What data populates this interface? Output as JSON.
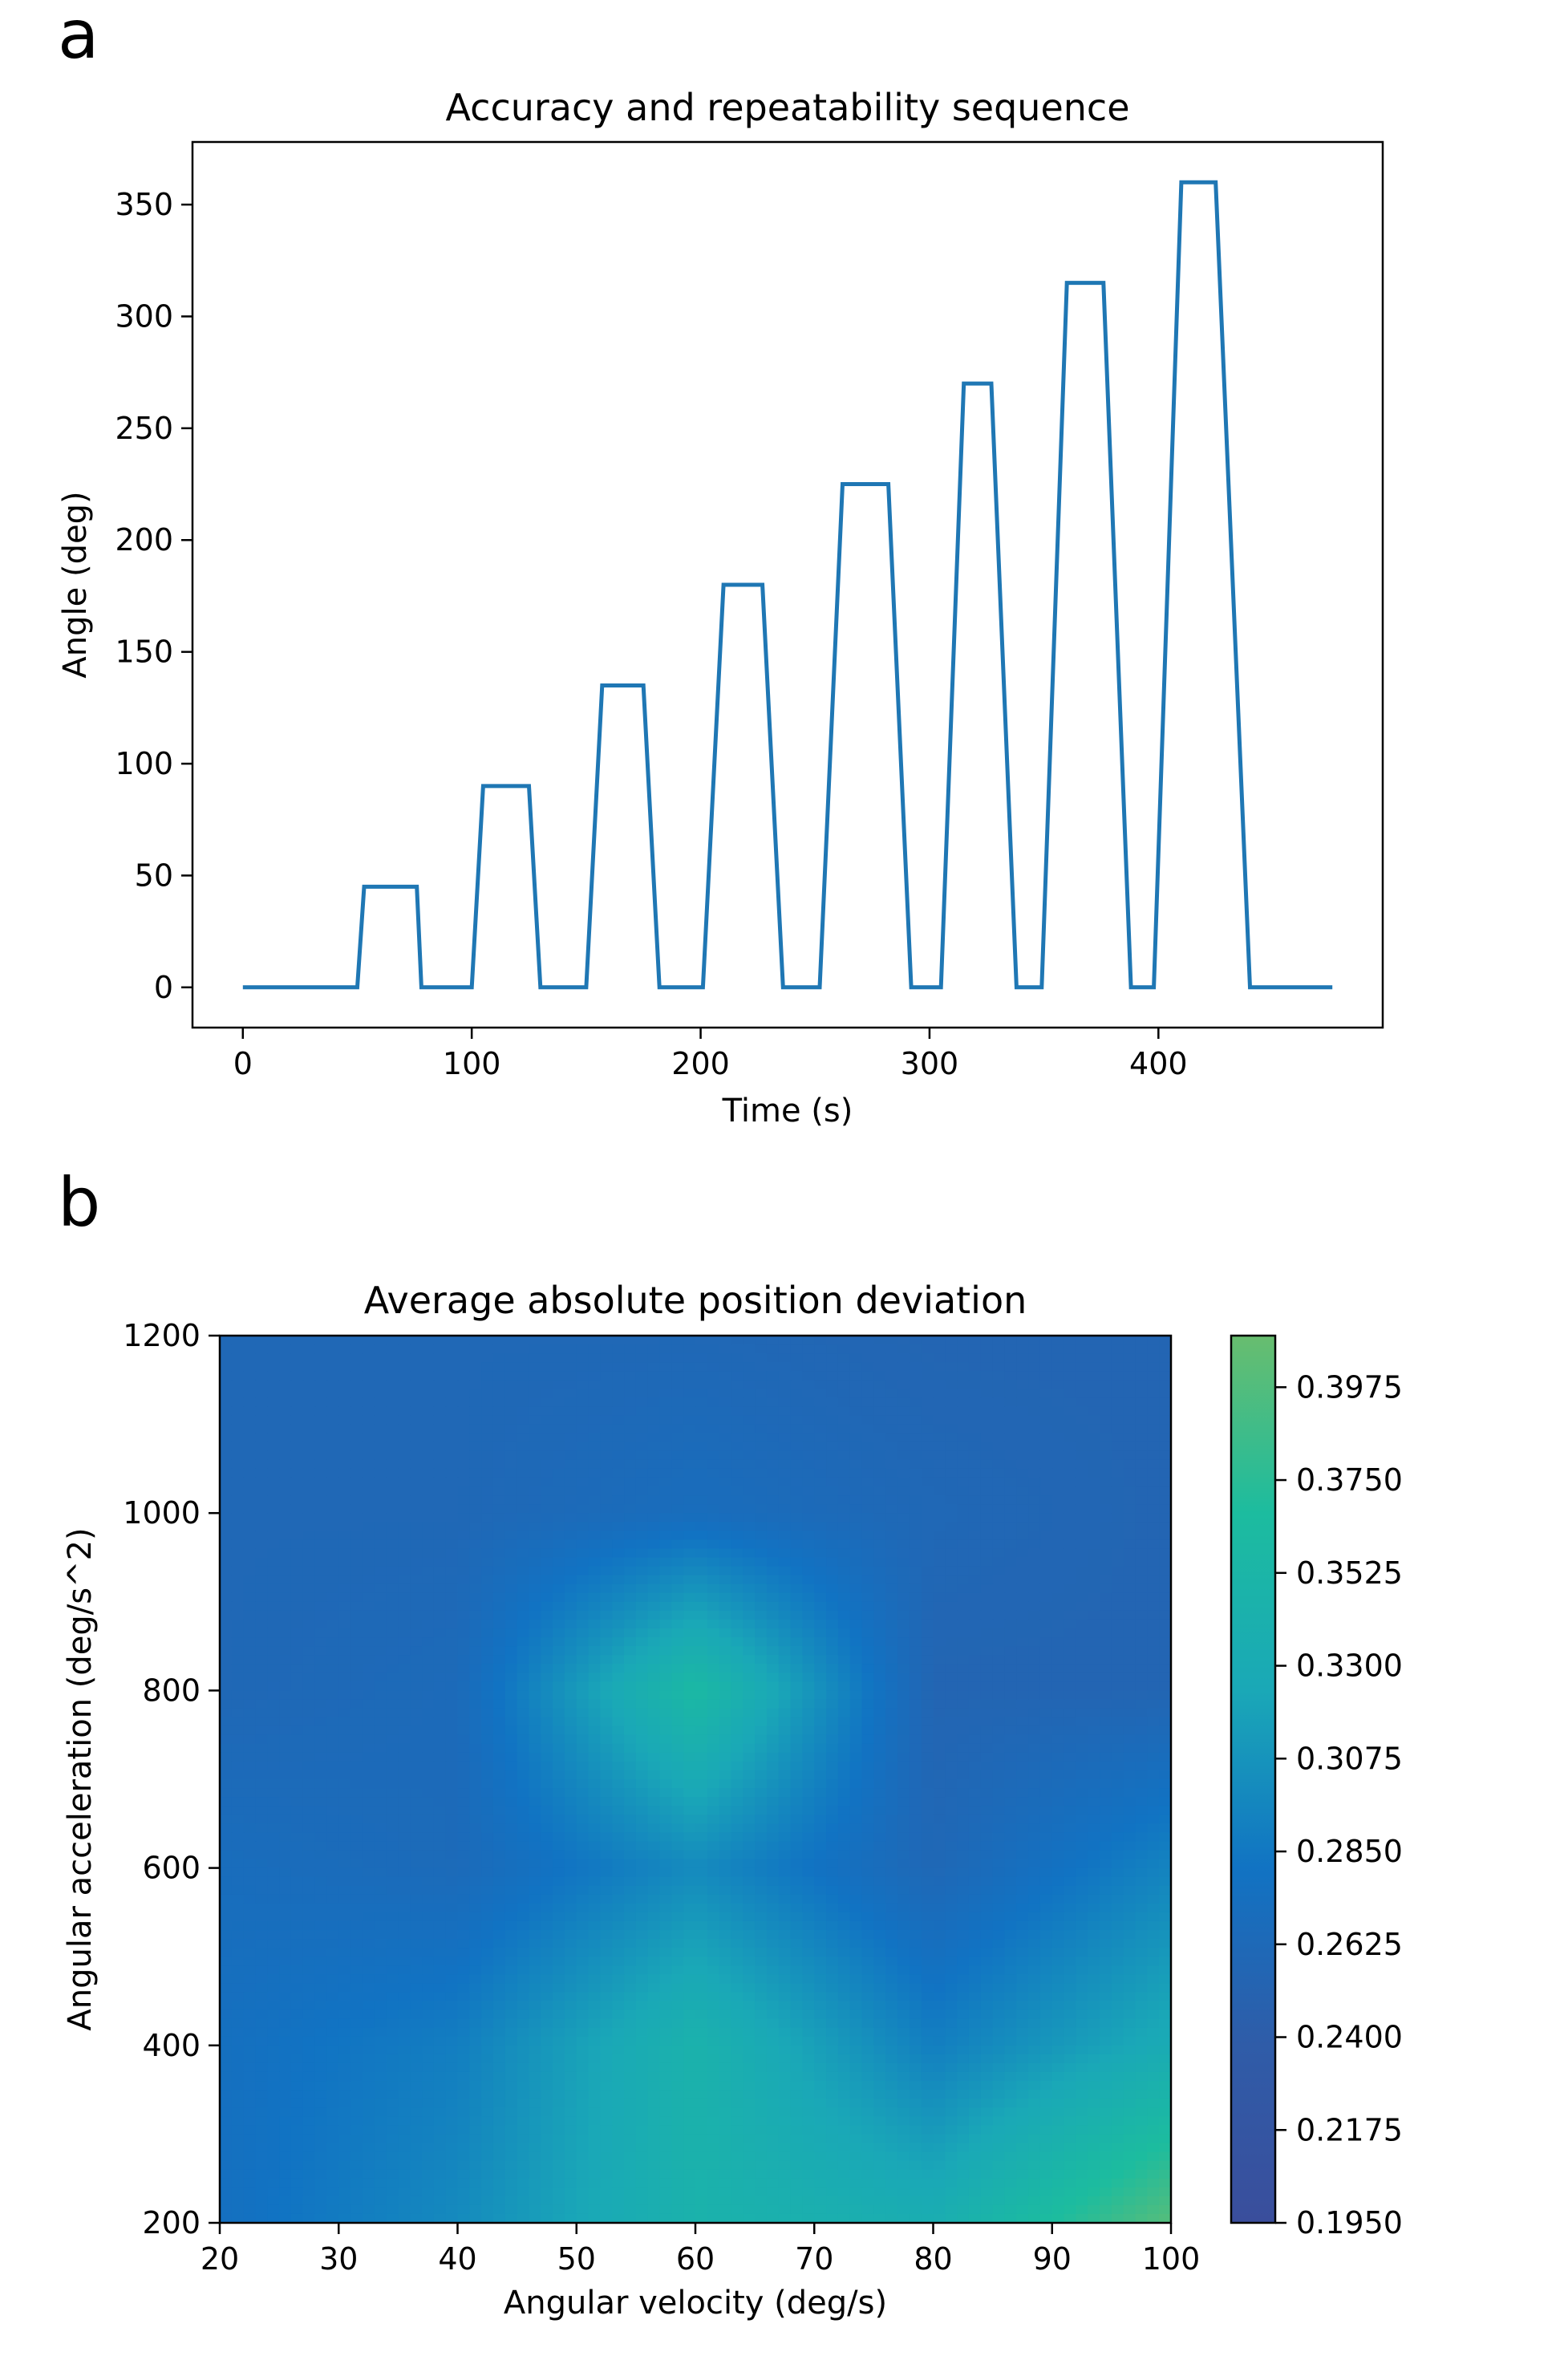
{
  "panel_labels": [
    "a",
    "b"
  ],
  "colors": {
    "line": "#1f77b4",
    "colormap": [
      "#3a4e9c",
      "#2f5ca8",
      "#1173c3",
      "#1aa8b7",
      "#1cbc9f",
      "#68bd6f"
    ]
  },
  "chart_data": [
    {
      "type": "line",
      "title": "Accuracy and repeatability sequence",
      "xlabel": "Time (s)",
      "ylabel": "Angle (deg)",
      "xlim": [
        -22,
        498
      ],
      "ylim": [
        -18,
        378
      ],
      "xticks": [
        0,
        100,
        200,
        300,
        400
      ],
      "yticks": [
        0,
        50,
        100,
        150,
        200,
        250,
        300,
        350
      ],
      "grid": false,
      "series": [
        {
          "x": [
            0,
            50,
            53,
            76,
            78,
            100,
            105,
            125,
            130,
            150,
            157,
            175,
            182,
            201,
            210,
            227,
            236,
            252,
            262,
            282,
            292,
            305,
            315,
            327,
            338,
            349,
            360,
            376,
            388,
            398,
            410,
            425,
            440,
            476
          ],
          "y": [
            0,
            0,
            45,
            45,
            0,
            0,
            90,
            90,
            0,
            0,
            135,
            135,
            0,
            0,
            180,
            180,
            0,
            0,
            225,
            225,
            0,
            0,
            270,
            270,
            0,
            0,
            315,
            315,
            0,
            0,
            360,
            360,
            0,
            0
          ]
        }
      ]
    },
    {
      "type": "heatmap",
      "title": "Average absolute position deviation",
      "xlabel": "Angular velocity (deg/s)",
      "ylabel": "Angular acceleration (deg/s^2)",
      "xlim": [
        20,
        100
      ],
      "ylim": [
        200,
        1200
      ],
      "xticks": [
        20,
        30,
        40,
        50,
        60,
        70,
        80,
        90,
        100
      ],
      "yticks": [
        200,
        400,
        600,
        800,
        1000,
        1200
      ],
      "x": [
        20,
        40,
        60,
        80,
        100
      ],
      "y": [
        200,
        400,
        600,
        800,
        1000,
        1200
      ],
      "z": [
        [
          0.275,
          0.3,
          0.345,
          0.335,
          0.4
        ],
        [
          0.275,
          0.29,
          0.345,
          0.29,
          0.33
        ],
        [
          0.27,
          0.265,
          0.3,
          0.26,
          0.295
        ],
        [
          0.26,
          0.265,
          0.36,
          0.255,
          0.255
        ],
        [
          0.26,
          0.26,
          0.27,
          0.26,
          0.255
        ],
        [
          0.26,
          0.26,
          0.26,
          0.255,
          0.255
        ]
      ],
      "colorbar": {
        "min": 0.195,
        "max": 0.41,
        "ticks": [
          "0.1950",
          "0.2175",
          "0.2400",
          "0.2625",
          "0.2850",
          "0.3075",
          "0.3300",
          "0.3525",
          "0.3750",
          "0.3975"
        ]
      }
    }
  ]
}
